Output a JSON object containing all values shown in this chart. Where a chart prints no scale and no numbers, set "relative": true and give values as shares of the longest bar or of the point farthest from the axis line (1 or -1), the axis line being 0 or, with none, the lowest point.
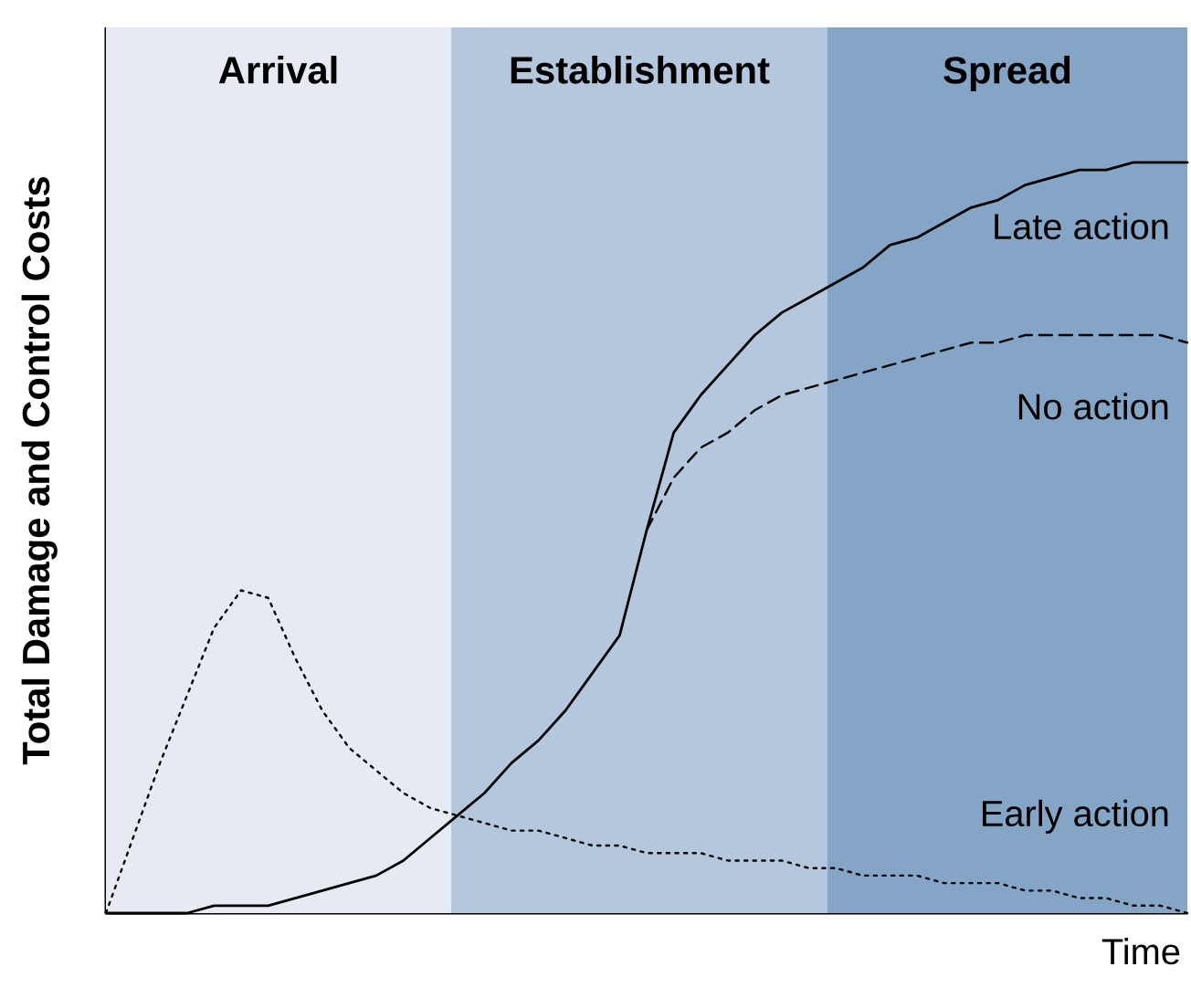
{
  "chart_data": {
    "type": "line",
    "relative": true,
    "ylabel": "Total Damage and Control Costs",
    "xlabel": "Time",
    "categories": [
      null,
      null,
      null,
      null,
      null,
      null,
      null,
      null,
      null,
      null,
      null,
      null,
      null,
      null,
      null,
      null,
      null,
      null,
      null,
      null,
      null,
      null,
      null,
      null,
      null,
      null,
      null,
      null,
      null,
      null,
      null,
      null,
      null,
      null,
      null,
      null,
      null,
      null,
      null,
      null,
      null
    ],
    "series": [
      {
        "name": "Late action",
        "color": "#000000",
        "line_style": "solid",
        "values": [
          0,
          0,
          0,
          0,
          0.01,
          0.01,
          0.01,
          0.02,
          0.03,
          0.04,
          0.05,
          0.07,
          0.1,
          0.13,
          0.16,
          0.2,
          0.23,
          0.27,
          0.32,
          0.37,
          0.51,
          0.64,
          0.69,
          0.73,
          0.77,
          0.8,
          0.82,
          0.84,
          0.86,
          0.89,
          0.9,
          0.92,
          0.94,
          0.95,
          0.97,
          0.98,
          0.99,
          0.99,
          1,
          1,
          1
        ]
      },
      {
        "name": "No action",
        "color": "#000000",
        "line_style": "dashed",
        "values": [
          null,
          null,
          null,
          null,
          null,
          null,
          null,
          null,
          null,
          null,
          null,
          null,
          null,
          null,
          null,
          null,
          null,
          null,
          null,
          null,
          0.51,
          0.58,
          0.62,
          0.64,
          0.67,
          0.69,
          0.7,
          0.71,
          0.72,
          0.73,
          0.74,
          0.75,
          0.76,
          0.76,
          0.77,
          0.77,
          0.77,
          0.77,
          0.77,
          0.77,
          0.76
        ]
      },
      {
        "name": "Early action",
        "color": "#000000",
        "line_style": "dotted",
        "values": [
          0,
          0.1,
          0.2,
          0.29,
          0.38,
          0.43,
          0.42,
          0.34,
          0.27,
          0.22,
          0.19,
          0.16,
          0.14,
          0.13,
          0.12,
          0.11,
          0.11,
          0.1,
          0.09,
          0.09,
          0.08,
          0.08,
          0.08,
          0.07,
          0.07,
          0.07,
          0.06,
          0.06,
          0.05,
          0.05,
          0.05,
          0.04,
          0.04,
          0.04,
          0.03,
          0.03,
          0.02,
          0.02,
          0.01,
          0.01,
          0
        ]
      }
    ],
    "annotations": [
      "Arrival",
      "Establishment",
      "Spread"
    ]
  }
}
